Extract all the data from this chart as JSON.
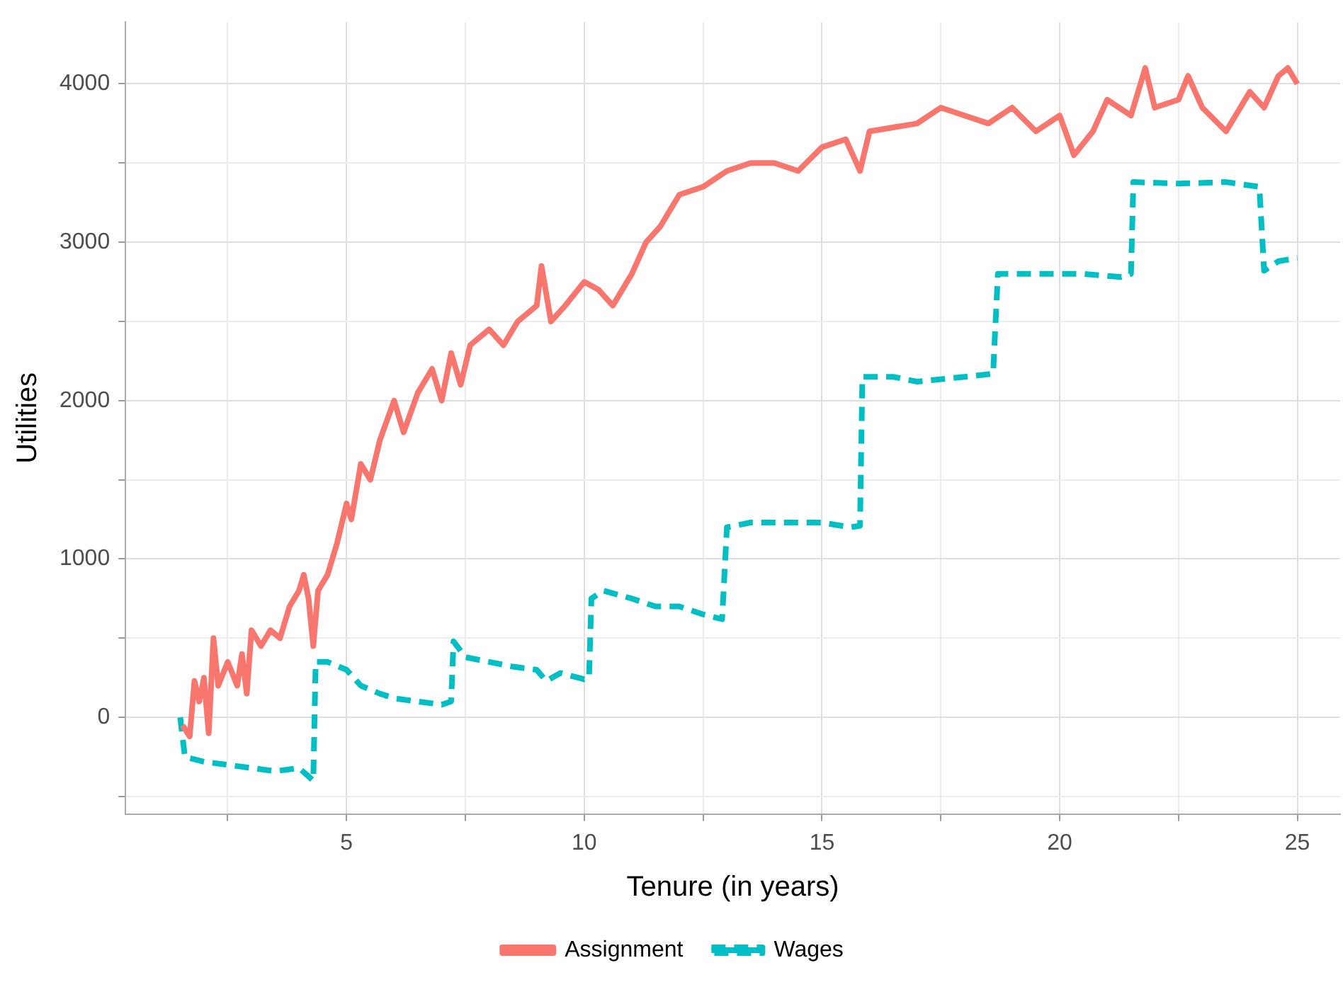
{
  "chart_data": {
    "type": "line",
    "xlabel": "Tenure (in years)",
    "ylabel": "Utilities",
    "xlim": [
      0.35,
      25.9
    ],
    "ylim": [
      -610,
      4390
    ],
    "xticks": [
      {
        "value": 2.5,
        "label": null
      },
      5,
      {
        "value": 7.5,
        "label": null
      },
      10,
      {
        "value": 12.5,
        "label": null
      },
      15,
      {
        "value": 17.5,
        "label": null
      },
      20,
      {
        "value": 22.5,
        "label": null
      },
      25
    ],
    "yticks": [
      {
        "value": -500,
        "label": null
      },
      0,
      {
        "value": 500,
        "label": null
      },
      1000,
      {
        "value": 1500,
        "label": null
      },
      2000,
      {
        "value": 2500,
        "label": null
      },
      3000,
      {
        "value": 3500,
        "label": null
      },
      4000
    ],
    "grid": true,
    "legend": "bottom",
    "marker": "none",
    "series": [
      {
        "name": "Assignment",
        "color": "#f8766d",
        "line_style": "solid",
        "x": [
          1.55,
          1.7,
          1.8,
          1.9,
          2.0,
          2.1,
          2.2,
          2.3,
          2.5,
          2.7,
          2.8,
          2.9,
          3.0,
          3.2,
          3.4,
          3.6,
          3.8,
          4.0,
          4.1,
          4.2,
          4.3,
          4.4,
          4.6,
          4.8,
          5.0,
          5.1,
          5.3,
          5.5,
          5.7,
          6.0,
          6.2,
          6.5,
          6.8,
          7.0,
          7.2,
          7.4,
          7.6,
          8.0,
          8.3,
          8.6,
          9.0,
          9.1,
          9.3,
          9.6,
          10.0,
          10.3,
          10.6,
          11.0,
          11.3,
          11.6,
          12.0,
          12.5,
          13.0,
          13.5,
          14.0,
          14.5,
          15.0,
          15.5,
          15.8,
          16.0,
          17.0,
          17.5,
          18.0,
          18.5,
          19.0,
          19.5,
          20.0,
          20.3,
          20.7,
          21.0,
          21.5,
          21.8,
          22.0,
          22.5,
          22.7,
          23.0,
          23.5,
          24.0,
          24.3,
          24.6,
          24.8,
          25.0
        ],
        "values": [
          -50,
          -120,
          230,
          100,
          250,
          -100,
          500,
          200,
          350,
          200,
          400,
          150,
          550,
          450,
          550,
          500,
          700,
          800,
          900,
          750,
          450,
          800,
          900,
          1100,
          1350,
          1250,
          1600,
          1500,
          1750,
          2000,
          1800,
          2050,
          2200,
          2000,
          2300,
          2100,
          2350,
          2450,
          2350,
          2500,
          2600,
          2850,
          2500,
          2600,
          2750,
          2700,
          2600,
          2800,
          3000,
          3100,
          3300,
          3350,
          3450,
          3500,
          3500,
          3450,
          3600,
          3650,
          3450,
          3700,
          3750,
          3850,
          3800,
          3750,
          3850,
          3700,
          3800,
          3550,
          3700,
          3900,
          3800,
          4100,
          3850,
          3900,
          4050,
          3850,
          3700,
          3950,
          3850,
          4050,
          4100,
          4000
        ]
      },
      {
        "name": "Wages",
        "color": "#00bfc4",
        "line_style": "dashed",
        "x": [
          1.5,
          1.6,
          2.0,
          2.5,
          3.0,
          3.5,
          4.0,
          4.3,
          4.35,
          4.6,
          5.0,
          5.3,
          5.7,
          6.0,
          6.5,
          7.0,
          7.2,
          7.25,
          7.5,
          8.0,
          8.5,
          9.0,
          9.2,
          9.5,
          10.0,
          10.1,
          10.15,
          10.4,
          11.0,
          11.5,
          12.0,
          12.5,
          12.9,
          13.0,
          13.5,
          14.0,
          15.0,
          15.6,
          15.8,
          15.85,
          16.5,
          17.0,
          18.0,
          18.6,
          18.7,
          19.5,
          20.5,
          21.3,
          21.5,
          21.55,
          22.5,
          23.5,
          24.2,
          24.3,
          24.6,
          25.0
        ],
        "values": [
          0,
          -250,
          -280,
          -300,
          -320,
          -340,
          -320,
          -400,
          350,
          350,
          300,
          200,
          150,
          120,
          100,
          80,
          100,
          480,
          380,
          350,
          320,
          300,
          230,
          280,
          240,
          250,
          750,
          800,
          750,
          700,
          700,
          650,
          620,
          1200,
          1230,
          1230,
          1230,
          1200,
          1210,
          2150,
          2150,
          2120,
          2150,
          2170,
          2800,
          2800,
          2800,
          2780,
          2800,
          3380,
          3370,
          3380,
          3350,
          2820,
          2880,
          2900
        ]
      }
    ]
  }
}
